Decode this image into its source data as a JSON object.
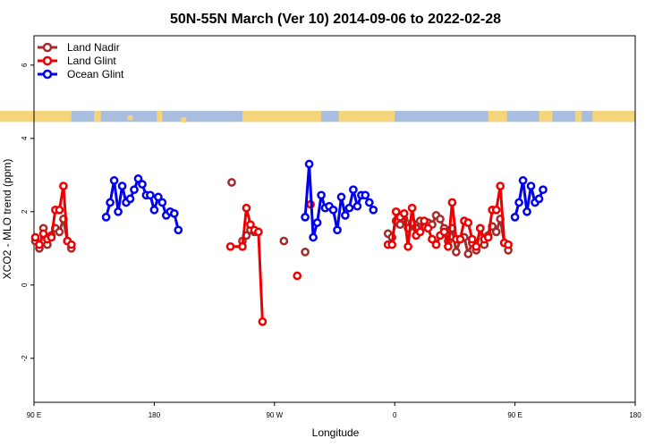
{
  "chart_data": {
    "type": "line",
    "title": "50N-55N March (Ver 10)   2014-09-06 to 2022-02-28",
    "xlabel": "Longitude",
    "ylabel": "XCO2 - MLO trend (ppm)",
    "xlim": [
      90,
      540
    ],
    "ylim": [
      -3.2,
      6.8
    ],
    "x_ticks": [
      {
        "value": 90,
        "label": "90 E"
      },
      {
        "value": 180,
        "label": "180"
      },
      {
        "value": 270,
        "label": "90 W"
      },
      {
        "value": 360,
        "label": "0"
      },
      {
        "value": 450,
        "label": "90 E"
      },
      {
        "value": 540,
        "label": "180"
      }
    ],
    "y_ticks": [
      {
        "value": -2,
        "label": "-2"
      },
      {
        "value": 0,
        "label": "0"
      },
      {
        "value": 2,
        "label": "2"
      },
      {
        "value": 4,
        "label": "4"
      },
      {
        "value": 6,
        "label": "6"
      }
    ],
    "legend_position": "top-left",
    "grid": false,
    "land_mask_strip": {
      "y_range": [
        4.45,
        4.75
      ],
      "ocean_color": "#a9bedf",
      "land_color": "#f6d57a"
    },
    "series": [
      {
        "name": "Land Nadir",
        "color": "#a52a2a",
        "segments": [
          [
            [
              91,
              1.2
            ],
            [
              94,
              1.0
            ],
            [
              97,
              1.55
            ],
            [
              100,
              1.1
            ],
            [
              103,
              1.35
            ],
            [
              106,
              1.55
            ],
            [
              109,
              1.45
            ],
            [
              112,
              1.8
            ],
            [
              115,
              1.2
            ],
            [
              118,
              1.0
            ]
          ],
          [
            [
              238,
              2.8
            ]
          ],
          [
            [
              246,
              1.2
            ],
            [
              249,
              1.35
            ],
            [
              252,
              1.5
            ],
            [
              255,
              1.45
            ]
          ],
          [
            [
              277,
              1.2
            ]
          ],
          [
            [
              293,
              0.9
            ]
          ],
          [
            [
              355,
              1.4
            ],
            [
              358,
              1.3
            ],
            [
              361,
              1.75
            ],
            [
              364,
              1.65
            ],
            [
              367,
              1.8
            ],
            [
              370,
              1.55
            ],
            [
              373,
              1.7
            ],
            [
              376,
              1.55
            ],
            [
              379,
              1.75
            ],
            [
              382,
              1.6
            ],
            [
              385,
              1.7
            ],
            [
              388,
              1.65
            ],
            [
              391,
              1.9
            ],
            [
              394,
              1.8
            ],
            [
              397,
              1.55
            ],
            [
              400,
              1.2
            ],
            [
              403,
              1.55
            ],
            [
              406,
              0.9
            ],
            [
              409,
              1.25
            ],
            [
              412,
              1.3
            ],
            [
              415,
              0.85
            ],
            [
              418,
              1.15
            ],
            [
              421,
              0.95
            ],
            [
              424,
              1.55
            ],
            [
              427,
              1.1
            ],
            [
              430,
              1.35
            ],
            [
              433,
              1.6
            ],
            [
              436,
              1.45
            ],
            [
              439,
              1.8
            ],
            [
              442,
              1.15
            ],
            [
              445,
              0.95
            ]
          ]
        ]
      },
      {
        "name": "Land Glint",
        "color": "#ee0000",
        "segments": [
          [
            [
              91,
              1.3
            ],
            [
              94,
              1.1
            ],
            [
              97,
              1.4
            ],
            [
              100,
              1.25
            ],
            [
              103,
              1.3
            ],
            [
              106,
              2.05
            ],
            [
              109,
              2.05
            ],
            [
              112,
              2.7
            ],
            [
              115,
              1.2
            ],
            [
              118,
              1.1
            ]
          ],
          [
            [
              237,
              1.05
            ],
            [
              246,
              1.05
            ],
            [
              249,
              2.1
            ],
            [
              252,
              1.65
            ],
            [
              255,
              1.5
            ],
            [
              258,
              1.45
            ],
            [
              261,
              -1.0
            ]
          ],
          [
            [
              287,
              0.25
            ]
          ],
          [
            [
              297,
              2.2
            ]
          ],
          [
            [
              355,
              1.1
            ],
            [
              358,
              1.1
            ],
            [
              361,
              2.0
            ],
            [
              364,
              1.85
            ],
            [
              367,
              1.95
            ],
            [
              370,
              1.05
            ],
            [
              373,
              2.1
            ],
            [
              376,
              1.35
            ],
            [
              379,
              1.45
            ],
            [
              382,
              1.75
            ],
            [
              385,
              1.55
            ],
            [
              388,
              1.25
            ],
            [
              391,
              1.1
            ],
            [
              394,
              1.35
            ],
            [
              397,
              1.45
            ],
            [
              400,
              1.05
            ],
            [
              403,
              2.25
            ],
            [
              406,
              1.25
            ],
            [
              409,
              1.25
            ],
            [
              412,
              1.75
            ],
            [
              415,
              1.7
            ],
            [
              418,
              1.25
            ],
            [
              421,
              1.05
            ],
            [
              424,
              1.55
            ],
            [
              427,
              1.25
            ],
            [
              430,
              1.3
            ],
            [
              433,
              2.05
            ],
            [
              436,
              2.05
            ],
            [
              439,
              2.7
            ],
            [
              442,
              1.15
            ],
            [
              445,
              1.1
            ]
          ]
        ]
      },
      {
        "name": "Ocean Glint",
        "color": "#0000ee",
        "segments": [
          [
            [
              144,
              1.85
            ],
            [
              147,
              2.25
            ],
            [
              150,
              2.85
            ],
            [
              153,
              2.0
            ],
            [
              156,
              2.7
            ],
            [
              159,
              2.25
            ],
            [
              162,
              2.35
            ],
            [
              165,
              2.6
            ],
            [
              168,
              2.9
            ],
            [
              171,
              2.75
            ],
            [
              174,
              2.45
            ],
            [
              177,
              2.45
            ],
            [
              180,
              2.05
            ],
            [
              183,
              2.4
            ],
            [
              186,
              2.25
            ],
            [
              189,
              1.9
            ],
            [
              192,
              2.0
            ],
            [
              195,
              1.95
            ],
            [
              198,
              1.5
            ]
          ],
          [
            [
              293,
              1.85
            ],
            [
              296,
              3.3
            ],
            [
              299,
              1.3
            ],
            [
              302,
              1.7
            ],
            [
              305,
              2.45
            ],
            [
              308,
              2.1
            ],
            [
              311,
              2.15
            ],
            [
              314,
              2.05
            ],
            [
              317,
              1.5
            ],
            [
              320,
              2.4
            ],
            [
              323,
              1.9
            ],
            [
              326,
              2.1
            ],
            [
              329,
              2.6
            ],
            [
              332,
              2.15
            ],
            [
              335,
              2.45
            ],
            [
              338,
              2.45
            ],
            [
              341,
              2.25
            ],
            [
              344,
              2.05
            ]
          ],
          [
            [
              450,
              1.85
            ],
            [
              453,
              2.25
            ],
            [
              456,
              2.85
            ],
            [
              459,
              2.0
            ],
            [
              462,
              2.7
            ],
            [
              465,
              2.25
            ],
            [
              468,
              2.35
            ],
            [
              471,
              2.6
            ]
          ]
        ]
      }
    ]
  }
}
